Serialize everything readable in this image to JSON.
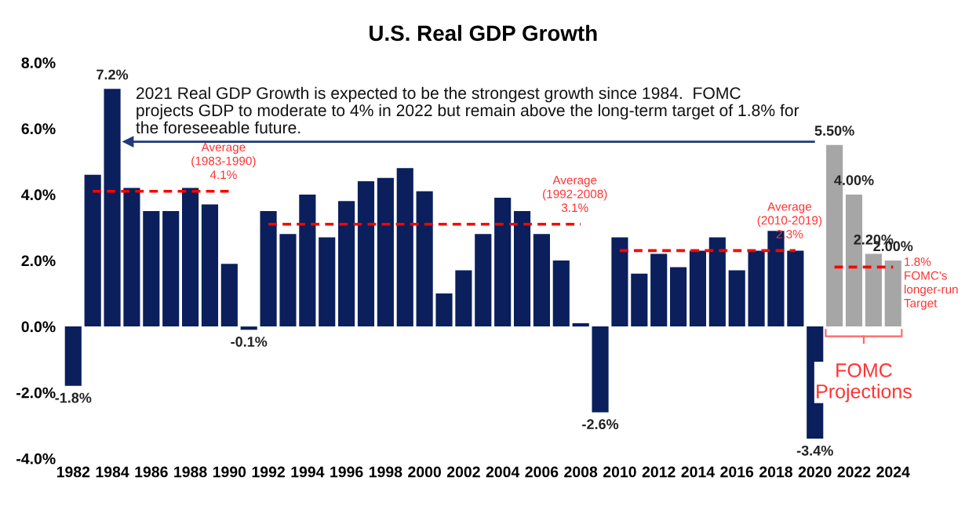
{
  "chart_data": {
    "type": "bar",
    "title": "U.S. Real GDP Growth",
    "categories": [
      "1982",
      null,
      "1984",
      null,
      "1986",
      null,
      "1988",
      null,
      "1990",
      null,
      "1992",
      null,
      "1994",
      null,
      "1996",
      null,
      "1998",
      null,
      "2000",
      null,
      "2002",
      null,
      "2004",
      null,
      "2006",
      null,
      "2008",
      null,
      "2010",
      null,
      "2012",
      null,
      "2014",
      null,
      "2016",
      null,
      "2018",
      null,
      "2020",
      null,
      "2022",
      null,
      "2024"
    ],
    "series": [
      {
        "colors": [
          "#0a1f5c",
          "#0a1f5c",
          "#0a1f5c",
          "#0a1f5c",
          "#0a1f5c",
          "#0a1f5c",
          "#0a1f5c",
          "#0a1f5c",
          "#0a1f5c",
          "#0a1f5c",
          "#0a1f5c",
          "#0a1f5c",
          "#0a1f5c",
          "#0a1f5c",
          "#0a1f5c",
          "#0a1f5c",
          "#0a1f5c",
          "#0a1f5c",
          "#0a1f5c",
          "#0a1f5c",
          "#0a1f5c",
          "#0a1f5c",
          "#0a1f5c",
          "#0a1f5c",
          "#0a1f5c",
          "#0a1f5c",
          "#0a1f5c",
          "#0a1f5c",
          "#0a1f5c",
          "#0a1f5c",
          "#0a1f5c",
          "#0a1f5c",
          "#0a1f5c",
          "#0a1f5c",
          "#0a1f5c",
          "#0a1f5c",
          "#0a1f5c",
          "#0a1f5c",
          "#0a1f5c",
          "#a6a6a6",
          "#a6a6a6",
          "#a6a6a6",
          "#a6a6a6"
        ],
        "values": [
          -1.8,
          4.6,
          7.2,
          4.2,
          3.5,
          3.5,
          4.2,
          3.7,
          1.9,
          -0.1,
          3.5,
          2.8,
          4.0,
          2.7,
          3.8,
          4.4,
          4.5,
          4.8,
          4.1,
          1.0,
          1.7,
          2.8,
          3.9,
          3.5,
          2.8,
          2.0,
          0.1,
          -2.6,
          2.7,
          1.6,
          2.2,
          1.8,
          2.3,
          2.7,
          1.7,
          2.3,
          2.9,
          2.3,
          -3.4,
          5.5,
          4.0,
          2.2,
          2.0
        ],
        "value_labels": [
          "-1.8%",
          null,
          "7.2%",
          null,
          null,
          null,
          null,
          null,
          null,
          "-0.1%",
          null,
          null,
          null,
          null,
          null,
          null,
          null,
          null,
          null,
          null,
          null,
          null,
          null,
          null,
          null,
          null,
          null,
          "-2.6%",
          null,
          null,
          null,
          null,
          null,
          null,
          null,
          null,
          null,
          null,
          "-3.4%",
          "5.50%",
          "4.00%",
          "2.20%",
          "2.00%"
        ]
      },
      {
        "type": "line",
        "name": "Average\n(1983-1990)\n4.1%",
        "color": "#ff0000",
        "line_style": "dashed",
        "values": [
          null,
          4.1,
          4.1,
          4.1,
          4.1,
          4.1,
          4.1,
          4.1,
          4.1,
          null,
          null,
          null,
          null,
          null,
          null,
          null,
          null,
          null,
          null,
          null,
          null,
          null,
          null,
          null,
          null,
          null,
          null,
          null,
          null,
          null,
          null,
          null,
          null,
          null,
          null,
          null,
          null,
          null,
          null,
          null,
          null,
          null,
          null
        ]
      },
      {
        "type": "line",
        "name": "Average\n(1992-2008)\n3.1%",
        "color": "#ff0000",
        "line_style": "dashed",
        "values": [
          null,
          null,
          null,
          null,
          null,
          null,
          null,
          null,
          null,
          null,
          3.1,
          3.1,
          3.1,
          3.1,
          3.1,
          3.1,
          3.1,
          3.1,
          3.1,
          3.1,
          3.1,
          3.1,
          3.1,
          3.1,
          3.1,
          3.1,
          3.1,
          null,
          null,
          null,
          null,
          null,
          null,
          null,
          null,
          null,
          null,
          null,
          null,
          null,
          null,
          null,
          null
        ]
      },
      {
        "type": "line",
        "name": "Average\n(2010-2019)\n2.3%",
        "color": "#ff0000",
        "line_style": "dashed",
        "values": [
          null,
          null,
          null,
          null,
          null,
          null,
          null,
          null,
          null,
          null,
          null,
          null,
          null,
          null,
          null,
          null,
          null,
          null,
          null,
          null,
          null,
          null,
          null,
          null,
          null,
          null,
          null,
          null,
          2.3,
          2.3,
          2.3,
          2.3,
          2.3,
          2.3,
          2.3,
          2.3,
          2.3,
          2.3,
          null,
          null,
          null,
          null,
          null
        ]
      },
      {
        "type": "line",
        "name": "1.8%\nFOMC's\nlonger-run\nTarget",
        "color": "#ff0000",
        "line_style": "dashed",
        "values": [
          null,
          null,
          null,
          null,
          null,
          null,
          null,
          null,
          null,
          null,
          null,
          null,
          null,
          null,
          null,
          null,
          null,
          null,
          null,
          null,
          null,
          null,
          null,
          null,
          null,
          null,
          null,
          null,
          null,
          null,
          null,
          null,
          null,
          null,
          null,
          null,
          null,
          null,
          null,
          1.8,
          1.8,
          1.8,
          1.8
        ]
      }
    ],
    "ylim": [
      -4,
      8
    ],
    "yticks": [
      {
        "value": -4,
        "label": "-4.0%"
      },
      {
        "value": -2,
        "label": "-2.0%"
      },
      {
        "value": 0,
        "label": "0.0%"
      },
      {
        "value": 2,
        "label": "2.0%"
      },
      {
        "value": 4,
        "label": "4.0%"
      },
      {
        "value": 6,
        "label": "6.0%"
      },
      {
        "value": 8,
        "label": "8.0%"
      }
    ],
    "grid": false,
    "legend": false,
    "annotations": [
      "2021 Real GDP Growth is expected to be the strongest growth since 1984.  FOMC\nprojects GDP to moderate to 4% in 2022 but remain above the long-term target of 1.8% for\nthe foreseeable future.",
      "FOMC\nProjections"
    ]
  }
}
